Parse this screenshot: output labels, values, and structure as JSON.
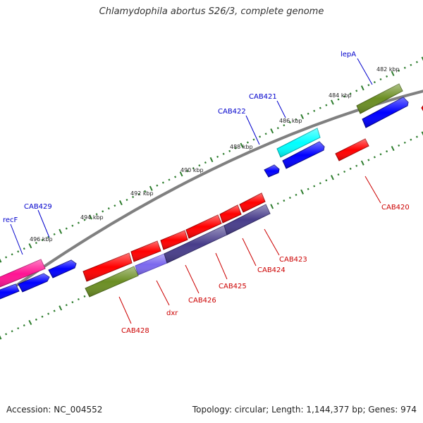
{
  "title": "Chlamydophila abortus S26/3, complete genome",
  "footer": {
    "accession": "Accession: NC_004552",
    "summary": "Topology: circular; Length: 1,144,377 bp; Genes: 974"
  },
  "colors": {
    "background": "#ffffff",
    "backbone": "#808080",
    "tick": "#2e7d2e",
    "label_forward": "#0000cc",
    "label_reverse": "#cc0000",
    "red": "#ff0000",
    "blue": "#0000ff",
    "green": "#6b8e23",
    "pink": "#ff1493",
    "cyan": "#00ffff",
    "purple": "#483d8b",
    "light_purple": "#7b68ee"
  },
  "scale_labels": [
    "482 kbp",
    "484 kbp",
    "486 kbp",
    "488 kbp",
    "490 kbp",
    "492 kbp",
    "494 kbp",
    "496 kbp"
  ],
  "gene_labels": {
    "forward": [
      "lepA",
      "CAB421",
      "CAB422",
      "CAB429",
      "recF"
    ],
    "reverse": [
      "CAB420",
      "CAB423",
      "CAB424",
      "CAB425",
      "CAB426",
      "dxr",
      "CAB428"
    ]
  }
}
